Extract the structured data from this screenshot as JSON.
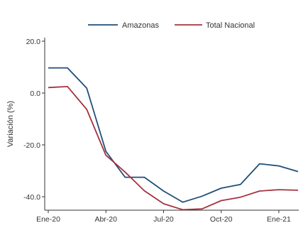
{
  "chart_data": {
    "type": "line",
    "title": "",
    "xlabel": "",
    "ylabel": "Variación (%)",
    "x_ticks": [
      {
        "label": "Ene-20",
        "index": 0
      },
      {
        "label": "Abr-20",
        "index": 3
      },
      {
        "label": "Jul-20",
        "index": 6
      },
      {
        "label": "Oct-20",
        "index": 9
      },
      {
        "label": "Ene-21",
        "index": 12
      }
    ],
    "x_categories": [
      "Ene-20",
      "Feb-20",
      "Mar-20",
      "Abr-20",
      "May-20",
      "Jun-20",
      "Jul-20",
      "Ago-20",
      "Sep-20",
      "Oct-20",
      "Nov-20",
      "Dic-20",
      "Ene-21",
      "Feb-21"
    ],
    "y_ticks": [
      {
        "label": "20.0",
        "value": 20
      },
      {
        "label": "0.0",
        "value": 0
      },
      {
        "label": "-20.0",
        "value": -20
      },
      {
        "label": "-40.0",
        "value": -40
      }
    ],
    "ylim": [
      -46,
      22
    ],
    "xlim": [
      0,
      13
    ],
    "grid": false,
    "legend_position": "top",
    "series": [
      {
        "name": "Amazonas",
        "color": "#1f4e79",
        "x": [
          0,
          1,
          2,
          3,
          4,
          5,
          6,
          7,
          8,
          9,
          10,
          11,
          12,
          13
        ],
        "values": [
          9.7,
          9.7,
          1.9,
          -22.5,
          -32.5,
          -32.5,
          -37.8,
          -42.1,
          -39.8,
          -36.7,
          -35.3,
          -27.3,
          -28.1,
          -30.3
        ]
      },
      {
        "name": "Total Nacional",
        "color": "#a3343f",
        "x": [
          0,
          1,
          2,
          3,
          4,
          5,
          6,
          7,
          8,
          9,
          10,
          11,
          12,
          13
        ],
        "values": [
          2.1,
          2.5,
          -6.3,
          -24.0,
          -30.5,
          -37.7,
          -42.7,
          -45.0,
          -44.7,
          -41.5,
          -40.2,
          -37.8,
          -37.3,
          -37.5
        ]
      }
    ]
  }
}
